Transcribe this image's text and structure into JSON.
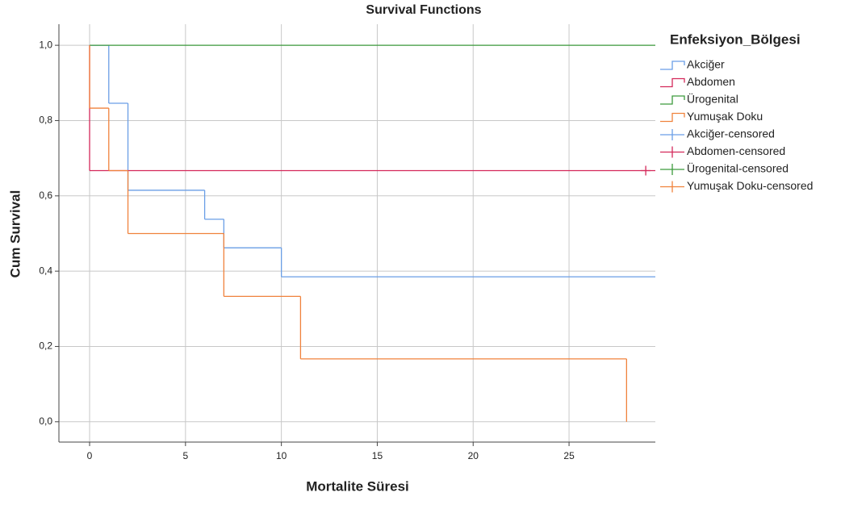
{
  "chart_data": {
    "type": "step",
    "title": "Survival Functions",
    "x_label": "Mortalite Süresi",
    "y_label": "Cum Survival",
    "legend_title": "Enfeksiyon_Bölgesi",
    "legend": "right",
    "grid": true,
    "xlim": [
      -1.6,
      29.5
    ],
    "ylim": [
      -0.054,
      1.056
    ],
    "xticks": [
      0,
      5,
      10,
      15,
      20,
      25
    ],
    "yticks": [
      {
        "value": 0,
        "label": "0,0"
      },
      {
        "value": 0.2,
        "label": "0,2"
      },
      {
        "value": 0.4,
        "label": "0,4"
      },
      {
        "value": 0.6,
        "label": "0,6"
      },
      {
        "value": 0.8,
        "label": "0,8"
      },
      {
        "value": 1,
        "label": "1,0"
      }
    ],
    "series": [
      {
        "name": "Akciğer",
        "color": "#6a9ee6",
        "marker": "step",
        "x": [
          0,
          1,
          2,
          6,
          7,
          10,
          29.5
        ],
        "values": [
          1,
          0.846,
          0.615,
          0.538,
          0.462,
          0.385,
          0.385
        ]
      },
      {
        "name": "Abdomen",
        "color": "#d4285a",
        "marker": "step",
        "x": [
          0,
          0,
          29.5
        ],
        "values": [
          1,
          0.667,
          0.667
        ]
      },
      {
        "name": "Ürogenital",
        "color": "#3c9a3c",
        "marker": "step",
        "x": [
          0,
          29.5
        ],
        "values": [
          1,
          1
        ]
      },
      {
        "name": "Yumuşak Doku",
        "color": "#f0823c",
        "marker": "step",
        "x": [
          0,
          0,
          1,
          2,
          7,
          11,
          28
        ],
        "values": [
          1,
          0.833,
          0.667,
          0.5,
          0.333,
          0.167,
          0
        ]
      },
      {
        "name": "Akciğer-censored",
        "color": "#6a9ee6",
        "marker": "plus",
        "x": [],
        "values": []
      },
      {
        "name": "Abdomen-censored",
        "color": "#d4285a",
        "marker": "plus",
        "x": [
          29
        ],
        "values": [
          0.667
        ]
      },
      {
        "name": "Ürogenital-censored",
        "color": "#3c9a3c",
        "marker": "plus",
        "x": [],
        "values": []
      },
      {
        "name": "Yumuşak Doku-censored",
        "color": "#f0823c",
        "marker": "plus",
        "x": [],
        "values": []
      }
    ]
  }
}
